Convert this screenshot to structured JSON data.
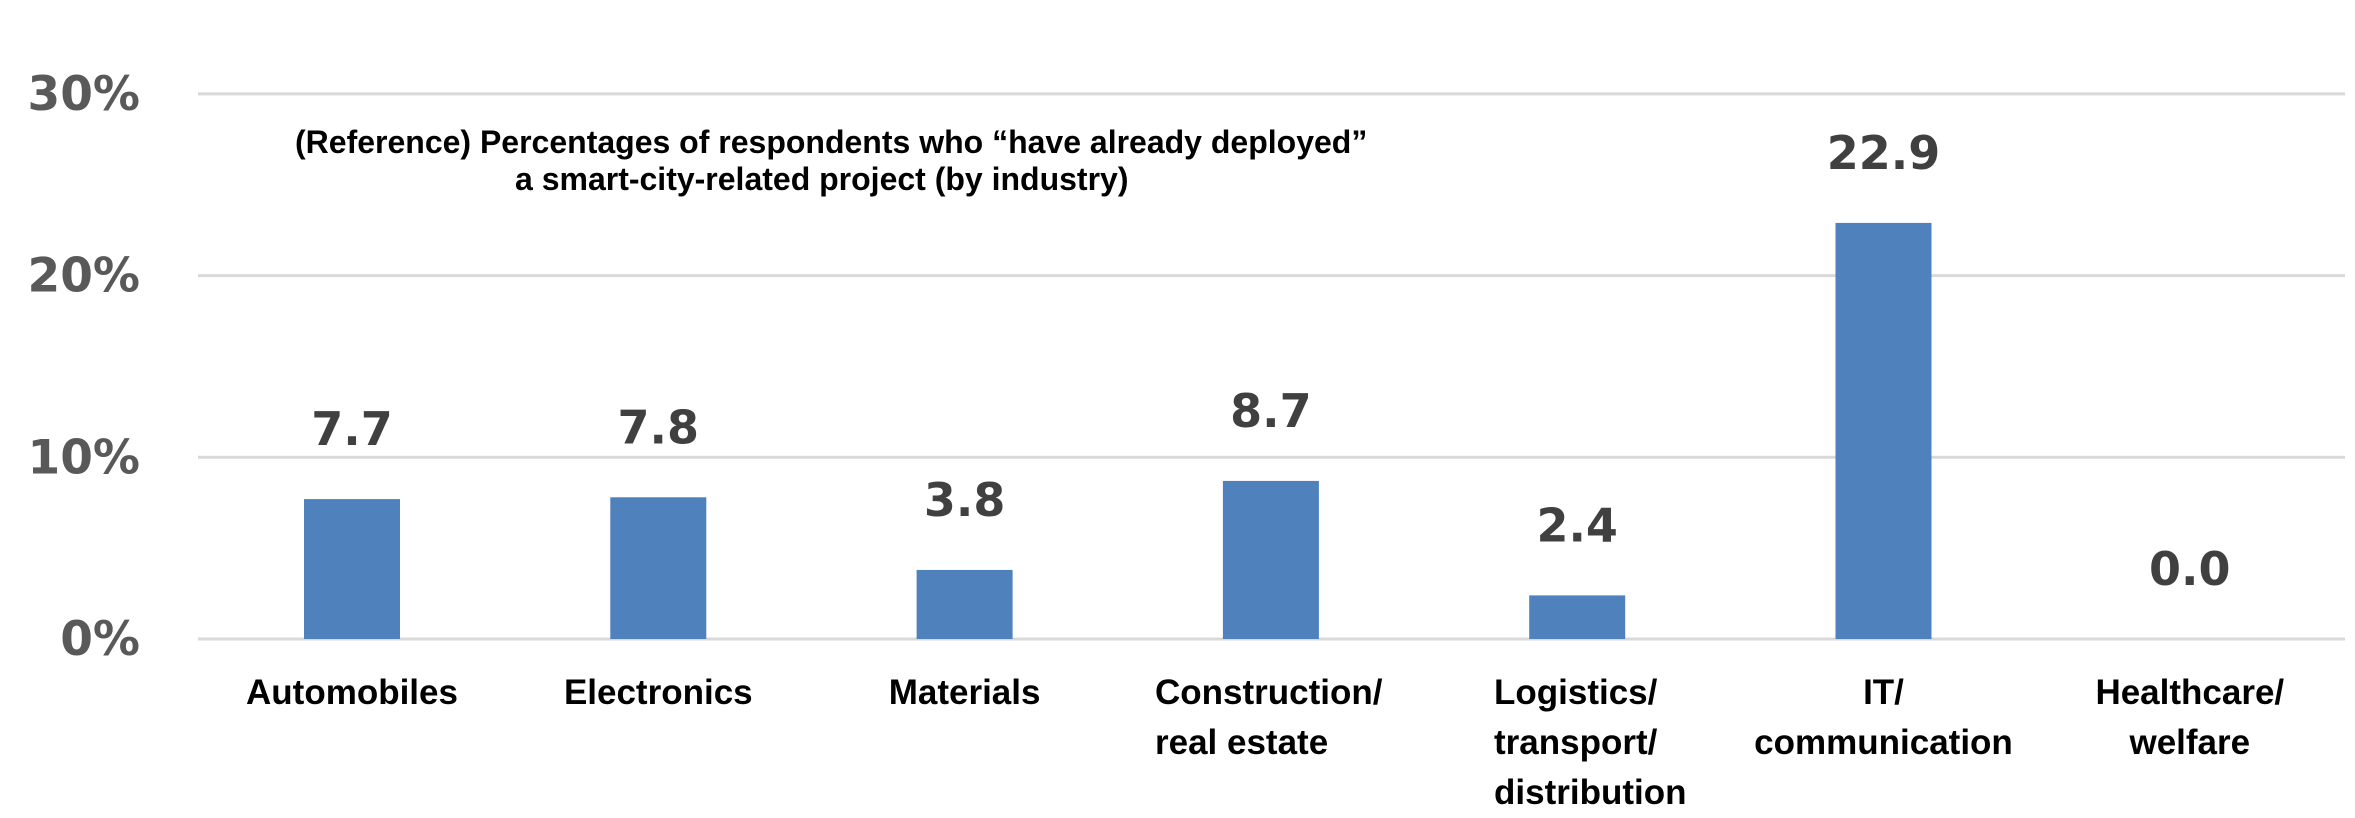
{
  "chart_data": {
    "type": "bar",
    "title_lines": [
      "(Reference) Percentages of  respondents who “have already deployed”",
      "a smart-city-related project (by industry)"
    ],
    "xlabel": "",
    "ylabel": "",
    "ylim": [
      0,
      30
    ],
    "yticks": [
      0,
      10,
      20,
      30
    ],
    "ytick_labels": [
      "0%",
      "10%",
      "20%",
      "30%"
    ],
    "grid": true,
    "legend": "none",
    "categories": [
      [
        "Automobiles"
      ],
      [
        "Electronics"
      ],
      [
        "Materials"
      ],
      [
        "Construction/",
        "real estate"
      ],
      [
        "Logistics/",
        "transport/",
        "distribution"
      ],
      [
        "IT/",
        "communication"
      ],
      [
        "Healthcare/",
        "welfare"
      ]
    ],
    "values": [
      7.7,
      7.8,
      3.8,
      8.7,
      2.4,
      22.9,
      0.0
    ],
    "data_labels": [
      "7.7",
      "7.8",
      "3.8",
      "8.7",
      "2.4",
      "22.9",
      "0.0"
    ],
    "bar_color": "#4F81BD",
    "grid_color": "#D9D9D9"
  }
}
